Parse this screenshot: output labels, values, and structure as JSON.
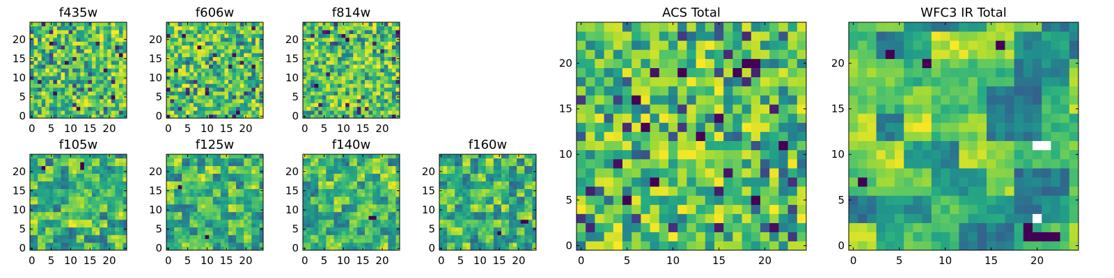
{
  "chart_data": [
    {
      "type": "heatmap",
      "title": "f435w",
      "grid_size": 25,
      "xlim": [
        -0.5,
        24.5
      ],
      "ylim": [
        -0.5,
        24.5
      ],
      "xticks": [
        0,
        5,
        10,
        15,
        20
      ],
      "yticks": [
        0,
        5,
        10,
        15,
        20
      ],
      "colormap": "viridis",
      "seed": 11,
      "smoothness": 1,
      "dark_points": []
    },
    {
      "type": "heatmap",
      "title": "f606w",
      "grid_size": 25,
      "xlim": [
        -0.5,
        24.5
      ],
      "ylim": [
        -0.5,
        24.5
      ],
      "xticks": [
        0,
        5,
        10,
        15,
        20
      ],
      "yticks": [
        0,
        5,
        10,
        15,
        20
      ],
      "colormap": "viridis",
      "seed": 23,
      "smoothness": 1,
      "dark_points": []
    },
    {
      "type": "heatmap",
      "title": "f814w",
      "grid_size": 25,
      "xlim": [
        -0.5,
        24.5
      ],
      "ylim": [
        -0.5,
        24.5
      ],
      "xticks": [
        0,
        5,
        10,
        15,
        20
      ],
      "yticks": [
        0,
        5,
        10,
        15,
        20
      ],
      "colormap": "viridis",
      "seed": 37,
      "smoothness": 1,
      "dark_points": []
    },
    {
      "type": "heatmap",
      "title": "f105w",
      "grid_size": 25,
      "xlim": [
        -0.5,
        24.5
      ],
      "ylim": [
        -0.5,
        24.5
      ],
      "xticks": [
        0,
        5,
        10,
        15,
        20
      ],
      "yticks": [
        0,
        5,
        10,
        15,
        20
      ],
      "colormap": "viridis",
      "seed": 41,
      "smoothness": 2,
      "dark_points": [
        [
          13,
          21
        ],
        [
          13,
          22
        ],
        [
          3,
          21
        ]
      ]
    },
    {
      "type": "heatmap",
      "title": "f125w",
      "grid_size": 25,
      "xlim": [
        -0.5,
        24.5
      ],
      "ylim": [
        -0.5,
        24.5
      ],
      "xticks": [
        0,
        5,
        10,
        15,
        20
      ],
      "yticks": [
        0,
        5,
        10,
        15,
        20
      ],
      "colormap": "viridis",
      "seed": 53,
      "smoothness": 2,
      "dark_points": [
        [
          10,
          3
        ],
        [
          3,
          16
        ]
      ]
    },
    {
      "type": "heatmap",
      "title": "f140w",
      "grid_size": 25,
      "xlim": [
        -0.5,
        24.5
      ],
      "ylim": [
        -0.5,
        24.5
      ],
      "xticks": [
        0,
        5,
        10,
        15,
        20
      ],
      "yticks": [
        0,
        5,
        10,
        15,
        20
      ],
      "colormap": "viridis",
      "seed": 67,
      "smoothness": 2,
      "dark_points": [
        [
          17,
          8
        ],
        [
          18,
          8
        ]
      ]
    },
    {
      "type": "heatmap",
      "title": "f160w",
      "grid_size": 25,
      "xlim": [
        -0.5,
        24.5
      ],
      "ylim": [
        -0.5,
        24.5
      ],
      "xticks": [
        0,
        5,
        10,
        15,
        20
      ],
      "yticks": [
        0,
        5,
        10,
        15,
        20
      ],
      "colormap": "viridis",
      "seed": 71,
      "smoothness": 2,
      "dark_points": [
        [
          21,
          7
        ],
        [
          22,
          7
        ],
        [
          15,
          4
        ]
      ]
    },
    {
      "type": "heatmap",
      "title": "ACS Total",
      "grid_size": 25,
      "xlim": [
        -0.5,
        24.5
      ],
      "ylim": [
        -0.5,
        24.5
      ],
      "xticks": [
        0,
        5,
        10,
        15,
        20
      ],
      "yticks": [
        0,
        5,
        10,
        15,
        20
      ],
      "colormap": "viridis",
      "seed": 83,
      "smoothness": 1,
      "dark_points": [
        [
          18,
          20
        ],
        [
          19,
          20
        ],
        [
          17,
          19
        ],
        [
          11,
          19
        ],
        [
          13,
          12
        ],
        [
          8,
          7
        ],
        [
          5,
          5
        ],
        [
          6,
          16
        ],
        [
          19,
          5
        ],
        [
          22,
          11
        ]
      ]
    },
    {
      "type": "heatmap",
      "title": "WFC3 IR Total",
      "grid_size": 25,
      "xlim": [
        -0.5,
        24.5
      ],
      "ylim": [
        -0.5,
        24.5
      ],
      "xticks": [
        0,
        5,
        10,
        15,
        20
      ],
      "yticks": [
        0,
        5,
        10,
        15,
        20
      ],
      "colormap": "viridis",
      "seed": 97,
      "smoothness": 3,
      "dark_points": [
        [
          4,
          21
        ],
        [
          8,
          20
        ],
        [
          16,
          22
        ],
        [
          1,
          7
        ],
        [
          19,
          1
        ],
        [
          20,
          1
        ],
        [
          21,
          1
        ],
        [
          22,
          1
        ],
        [
          19,
          2
        ]
      ],
      "blank_points": [
        [
          20,
          11
        ],
        [
          21,
          11
        ],
        [
          20,
          3
        ]
      ]
    }
  ]
}
